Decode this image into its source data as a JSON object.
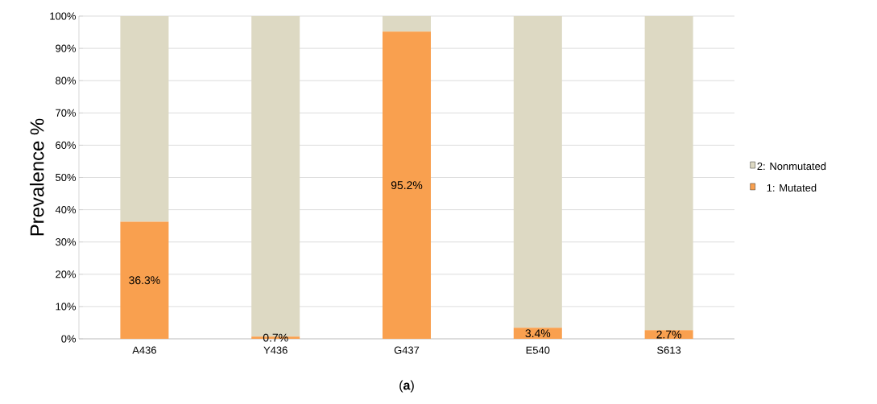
{
  "chart_data": {
    "type": "bar",
    "stacked": true,
    "ylabel": "Prevalence %",
    "categories": [
      "A436",
      "Y436",
      "G437",
      "E540",
      "S613"
    ],
    "series": [
      {
        "name": "1: Mutated",
        "color": "#f9a04f",
        "values": [
          36.3,
          0.7,
          95.2,
          3.4,
          2.7
        ],
        "value_labels": [
          "36.3%",
          "0.7%",
          "95.2%",
          "3.4%",
          "2.7%"
        ]
      },
      {
        "name": "2: Nonmutated",
        "color": "#ddd9c3",
        "values": [
          63.7,
          99.3,
          4.8,
          96.6,
          97.3
        ]
      }
    ],
    "ylim": [
      0,
      100
    ],
    "yticks": [
      {
        "value": 0,
        "label": "0%"
      },
      {
        "value": 10,
        "label": "10%"
      },
      {
        "value": 20,
        "label": "20%"
      },
      {
        "value": 30,
        "label": "30%"
      },
      {
        "value": 40,
        "label": "40%"
      },
      {
        "value": 50,
        "label": "50%"
      },
      {
        "value": 60,
        "label": "60%"
      },
      {
        "value": 70,
        "label": "70%"
      },
      {
        "value": 80,
        "label": "80%"
      },
      {
        "value": 90,
        "label": "90%"
      },
      {
        "value": 100,
        "label": "100%"
      }
    ],
    "grid": "y",
    "legend": "right",
    "annotations": [
      "(**a**)"
    ]
  }
}
